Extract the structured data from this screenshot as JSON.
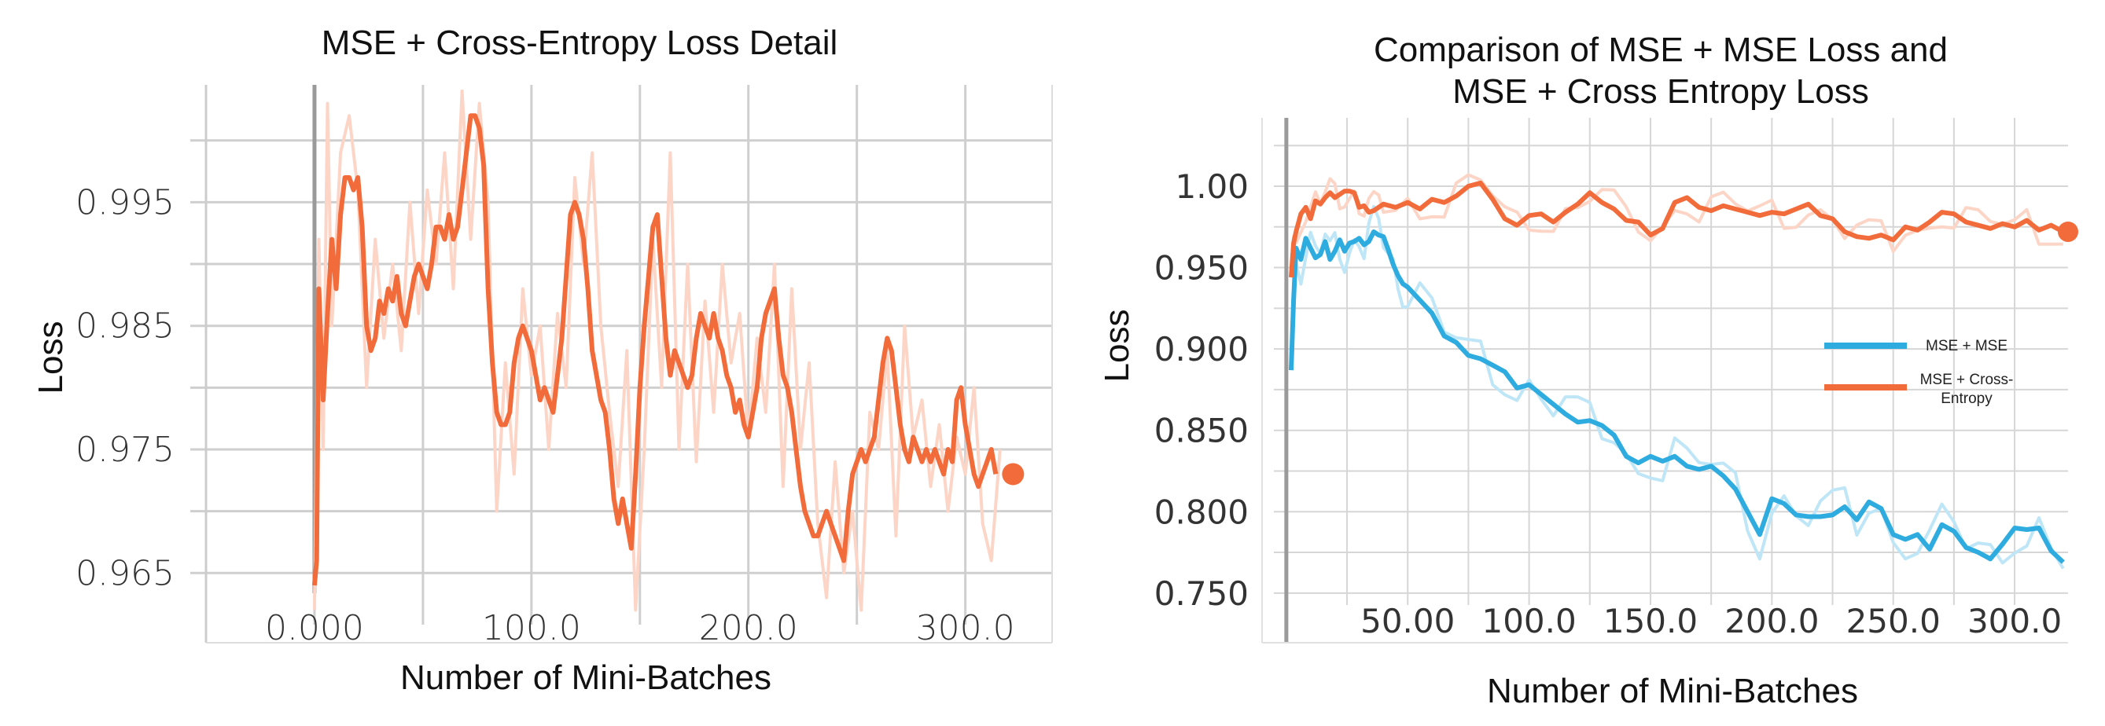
{
  "chart_data": [
    {
      "type": "line",
      "title": "MSE + Cross-Entropy Loss Detail",
      "xlabel": "Number of Mini-Batches",
      "ylabel": "Loss",
      "xlim": [
        -50,
        340
      ],
      "ylim": [
        0.964,
        1.0045
      ],
      "xticks": [
        0,
        100,
        200,
        300
      ],
      "xtick_labels": [
        "0.000",
        "100.0",
        "200.0",
        "300.0"
      ],
      "yticks": [
        0.965,
        0.975,
        0.985,
        0.995
      ],
      "ytick_labels": [
        "0.965",
        "0.975",
        "0.985",
        "0.995"
      ],
      "grid": true,
      "colors": {
        "series": "#f26b3a",
        "raw": "#fcd5c7"
      },
      "series": [
        {
          "role": "raw",
          "x": [
            0,
            2,
            4,
            6,
            8,
            12,
            16,
            20,
            24,
            28,
            32,
            36,
            40,
            44,
            48,
            52,
            56,
            60,
            64,
            68,
            72,
            76,
            80,
            84,
            88,
            92,
            96,
            100,
            104,
            108,
            112,
            116,
            120,
            124,
            128,
            132,
            136,
            140,
            144,
            148,
            152,
            156,
            160,
            164,
            168,
            172,
            176,
            180,
            184,
            188,
            192,
            196,
            200,
            204,
            208,
            212,
            216,
            220,
            224,
            228,
            232,
            236,
            240,
            244,
            248,
            252,
            256,
            260,
            264,
            268,
            272,
            276,
            280,
            284,
            288,
            292,
            296,
            300,
            304,
            308,
            312,
            316
          ],
          "y": [
            0.962,
            0.992,
            0.975,
            1.003,
            0.985,
            0.999,
            1.002,
            0.996,
            0.98,
            0.992,
            0.984,
            0.99,
            0.983,
            0.995,
            0.986,
            0.996,
            0.99,
            0.999,
            0.988,
            1.004,
            0.992,
            1.003,
            0.995,
            0.97,
            0.982,
            0.973,
            0.988,
            0.981,
            0.985,
            0.975,
            0.986,
            0.98,
            0.997,
            0.99,
            0.999,
            0.985,
            0.978,
            0.972,
            0.983,
            0.962,
            0.975,
            0.992,
            0.98,
            0.999,
            0.975,
            0.99,
            0.974,
            0.987,
            0.978,
            0.99,
            0.982,
            0.986,
            0.976,
            0.984,
            0.978,
            0.99,
            0.972,
            0.988,
            0.975,
            0.982,
            0.969,
            0.963,
            0.974,
            0.965,
            0.97,
            0.962,
            0.978,
            0.975,
            0.983,
            0.968,
            0.985,
            0.976,
            0.979,
            0.972,
            0.977,
            0.97,
            0.976,
            0.973,
            0.98,
            0.969,
            0.966,
            0.975
          ]
        },
        {
          "role": "smoothed",
          "x": [
            0,
            1,
            2,
            4,
            6,
            8,
            10,
            12,
            14,
            16,
            18,
            20,
            22,
            24,
            26,
            28,
            30,
            32,
            34,
            36,
            38,
            40,
            42,
            44,
            46,
            48,
            50,
            52,
            54,
            56,
            58,
            60,
            62,
            64,
            66,
            68,
            70,
            72,
            74,
            76,
            78,
            80,
            82,
            84,
            86,
            88,
            90,
            92,
            94,
            96,
            98,
            100,
            102,
            104,
            106,
            108,
            110,
            112,
            114,
            116,
            118,
            120,
            122,
            124,
            126,
            128,
            130,
            132,
            134,
            136,
            138,
            140,
            142,
            144,
            146,
            148,
            150,
            152,
            154,
            156,
            158,
            160,
            162,
            164,
            166,
            168,
            170,
            172,
            174,
            176,
            178,
            180,
            182,
            184,
            186,
            188,
            190,
            192,
            194,
            196,
            198,
            200,
            202,
            204,
            206,
            208,
            210,
            212,
            214,
            216,
            218,
            220,
            222,
            224,
            226,
            228,
            230,
            232,
            234,
            236,
            238,
            240,
            242,
            244,
            246,
            248,
            250,
            252,
            254,
            256,
            258,
            260,
            262,
            264,
            266,
            268,
            270,
            272,
            274,
            276,
            278,
            280,
            282,
            284,
            286,
            288,
            290,
            292,
            294,
            296,
            298,
            300,
            302,
            304,
            306,
            308,
            310,
            312,
            314
          ],
          "y": [
            0.964,
            0.966,
            0.988,
            0.979,
            0.986,
            0.992,
            0.988,
            0.994,
            0.997,
            0.997,
            0.996,
            0.997,
            0.993,
            0.985,
            0.983,
            0.984,
            0.987,
            0.986,
            0.988,
            0.987,
            0.989,
            0.986,
            0.985,
            0.987,
            0.989,
            0.99,
            0.989,
            0.988,
            0.99,
            0.993,
            0.993,
            0.992,
            0.994,
            0.992,
            0.993,
            0.996,
            0.999,
            1.002,
            1.002,
            1.001,
            0.998,
            0.988,
            0.982,
            0.978,
            0.977,
            0.977,
            0.978,
            0.982,
            0.984,
            0.985,
            0.984,
            0.983,
            0.981,
            0.979,
            0.98,
            0.979,
            0.978,
            0.981,
            0.984,
            0.989,
            0.994,
            0.995,
            0.994,
            0.992,
            0.988,
            0.983,
            0.981,
            0.979,
            0.978,
            0.975,
            0.971,
            0.969,
            0.971,
            0.969,
            0.967,
            0.973,
            0.98,
            0.985,
            0.989,
            0.993,
            0.994,
            0.989,
            0.984,
            0.981,
            0.983,
            0.982,
            0.981,
            0.98,
            0.981,
            0.984,
            0.986,
            0.985,
            0.984,
            0.986,
            0.984,
            0.983,
            0.981,
            0.98,
            0.978,
            0.979,
            0.977,
            0.976,
            0.978,
            0.98,
            0.984,
            0.986,
            0.987,
            0.988,
            0.984,
            0.981,
            0.98,
            0.978,
            0.975,
            0.972,
            0.97,
            0.969,
            0.968,
            0.968,
            0.969,
            0.97,
            0.969,
            0.968,
            0.967,
            0.966,
            0.97,
            0.973,
            0.974,
            0.975,
            0.974,
            0.975,
            0.976,
            0.979,
            0.982,
            0.984,
            0.983,
            0.98,
            0.977,
            0.975,
            0.974,
            0.976,
            0.975,
            0.974,
            0.975,
            0.974,
            0.975,
            0.974,
            0.973,
            0.975,
            0.974,
            0.979,
            0.98,
            0.977,
            0.975,
            0.973,
            0.972,
            0.973,
            0.974,
            0.975,
            0.973
          ]
        }
      ],
      "end_marker": {
        "x": 322,
        "y": 0.973
      }
    },
    {
      "type": "line",
      "title": [
        "Comparison of MSE + MSE Loss and",
        "MSE + Cross Entropy Loss"
      ],
      "xlabel": "Number of Mini-Batches",
      "ylabel": "Loss",
      "xlim": [
        -10,
        322
      ],
      "ylim": [
        0.7475,
        1.042
      ],
      "xticks": [
        50,
        100,
        150,
        200,
        250,
        300
      ],
      "xtick_labels": [
        "50.00",
        "100.0",
        "150.0",
        "200.0",
        "250.0",
        "300.0"
      ],
      "yticks": [
        0.75,
        0.8,
        0.85,
        0.9,
        0.95,
        1.0
      ],
      "ytick_labels": [
        "0.750",
        "0.800",
        "0.850",
        "0.900",
        "0.950",
        "1.00"
      ],
      "grid": true,
      "legend": {
        "placement": "center-right"
      },
      "colors": {
        "mse": "#2eabdf",
        "mse_raw": "#bfe6f7",
        "ce": "#f26b3a",
        "ce_raw": "#fcd5c7"
      },
      "series": [
        {
          "name": "MSE + MSE",
          "color_key": "mse",
          "x": [
            2,
            3,
            4,
            6,
            8,
            10,
            12,
            14,
            16,
            18,
            20,
            22,
            24,
            26,
            28,
            30,
            32,
            34,
            36,
            38,
            40,
            42,
            44,
            46,
            48,
            50,
            55,
            60,
            65,
            70,
            75,
            80,
            85,
            90,
            95,
            100,
            105,
            110,
            115,
            120,
            125,
            130,
            135,
            140,
            145,
            150,
            155,
            160,
            165,
            170,
            175,
            180,
            185,
            190,
            195,
            200,
            205,
            210,
            215,
            220,
            225,
            230,
            235,
            240,
            245,
            250,
            255,
            260,
            265,
            270,
            275,
            280,
            285,
            290,
            295,
            300,
            305,
            310,
            315,
            320
          ],
          "y": [
            0.887,
            0.93,
            0.962,
            0.955,
            0.968,
            0.962,
            0.956,
            0.958,
            0.966,
            0.955,
            0.96,
            0.967,
            0.96,
            0.965,
            0.966,
            0.968,
            0.964,
            0.966,
            0.972,
            0.97,
            0.969,
            0.961,
            0.952,
            0.945,
            0.94,
            0.938,
            0.93,
            0.922,
            0.908,
            0.904,
            0.896,
            0.894,
            0.89,
            0.886,
            0.876,
            0.878,
            0.872,
            0.866,
            0.86,
            0.855,
            0.856,
            0.853,
            0.847,
            0.834,
            0.83,
            0.834,
            0.831,
            0.834,
            0.828,
            0.826,
            0.828,
            0.822,
            0.814,
            0.8,
            0.786,
            0.808,
            0.805,
            0.798,
            0.797,
            0.797,
            0.798,
            0.803,
            0.795,
            0.806,
            0.802,
            0.786,
            0.783,
            0.786,
            0.777,
            0.792,
            0.788,
            0.778,
            0.775,
            0.771,
            0.78,
            0.79,
            0.789,
            0.79,
            0.776,
            0.769
          ]
        },
        {
          "name": "MSE + Cross-Entropy",
          "color_key": "ce",
          "x": [
            2,
            3,
            4,
            6,
            8,
            10,
            12,
            14,
            16,
            18,
            20,
            22,
            24,
            26,
            28,
            30,
            32,
            34,
            36,
            38,
            40,
            45,
            50,
            55,
            60,
            65,
            70,
            75,
            80,
            85,
            90,
            95,
            100,
            105,
            110,
            115,
            120,
            125,
            130,
            135,
            140,
            145,
            150,
            155,
            160,
            165,
            170,
            175,
            180,
            185,
            190,
            195,
            200,
            205,
            210,
            215,
            220,
            225,
            230,
            235,
            240,
            245,
            250,
            255,
            260,
            265,
            270,
            275,
            280,
            285,
            290,
            295,
            300,
            305,
            310,
            315,
            320
          ],
          "y": [
            0.944,
            0.965,
            0.972,
            0.983,
            0.987,
            0.98,
            0.991,
            0.989,
            0.993,
            0.996,
            0.993,
            0.995,
            0.997,
            0.997,
            0.996,
            0.987,
            0.988,
            0.984,
            0.985,
            0.987,
            0.989,
            0.987,
            0.99,
            0.986,
            0.992,
            0.99,
            0.994,
            1.0,
            1.002,
            0.992,
            0.98,
            0.976,
            0.982,
            0.983,
            0.978,
            0.984,
            0.989,
            0.996,
            0.99,
            0.986,
            0.979,
            0.978,
            0.97,
            0.974,
            0.99,
            0.993,
            0.987,
            0.985,
            0.988,
            0.986,
            0.984,
            0.982,
            0.984,
            0.983,
            0.986,
            0.989,
            0.982,
            0.98,
            0.972,
            0.969,
            0.968,
            0.97,
            0.967,
            0.975,
            0.973,
            0.978,
            0.984,
            0.983,
            0.978,
            0.976,
            0.974,
            0.977,
            0.975,
            0.979,
            0.973,
            0.976,
            0.972
          ]
        }
      ],
      "end_marker": {
        "x": 322,
        "y": 0.972
      }
    }
  ]
}
